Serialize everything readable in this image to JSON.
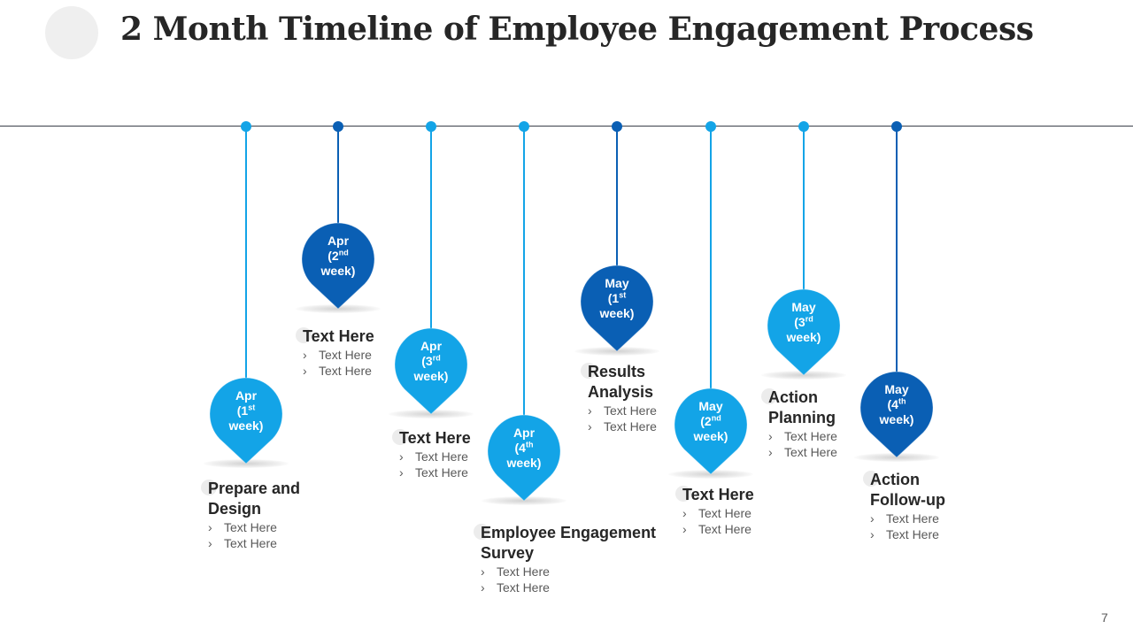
{
  "title": "2 Month Timeline of Employee Engagement Process",
  "page_number": "7",
  "colors": {
    "light": "#13a4e7",
    "dark": "#0a5fb4",
    "line": "#3a3f4a"
  },
  "milestones": [
    {
      "month": "Apr",
      "num": "(1",
      "sup": "st",
      "week": "week)",
      "heading": "Prepare and Design",
      "items": [
        "Text Here",
        "Text Here"
      ]
    },
    {
      "month": "Apr",
      "num": "(2",
      "sup": "nd",
      "week": "week)",
      "heading": "Text Here",
      "items": [
        "Text Here",
        "Text Here"
      ]
    },
    {
      "month": "Apr",
      "num": "(3",
      "sup": "rd",
      "week": "week)",
      "heading": "Text Here",
      "items": [
        "Text Here",
        "Text Here"
      ]
    },
    {
      "month": "Apr",
      "num": "(4",
      "sup": "th",
      "week": "week)",
      "heading": "Employee Engagement Survey",
      "items": [
        "Text Here",
        "Text Here"
      ]
    },
    {
      "month": "May",
      "num": "(1",
      "sup": "st",
      "week": "week)",
      "heading": "Results Analysis",
      "items": [
        "Text Here",
        "Text Here"
      ]
    },
    {
      "month": "May",
      "num": "(2",
      "sup": "nd",
      "week": "week)",
      "heading": "Text Here",
      "items": [
        "Text Here",
        "Text Here"
      ]
    },
    {
      "month": "May",
      "num": "(3",
      "sup": "rd",
      "week": "week)",
      "heading": "Action Planning",
      "items": [
        "Text Here",
        "Text Here"
      ]
    },
    {
      "month": "May",
      "num": "(4",
      "sup": "th",
      "week": "week)",
      "heading": "Action Follow-up",
      "items": [
        "Text Here",
        "Text Here"
      ]
    }
  ]
}
